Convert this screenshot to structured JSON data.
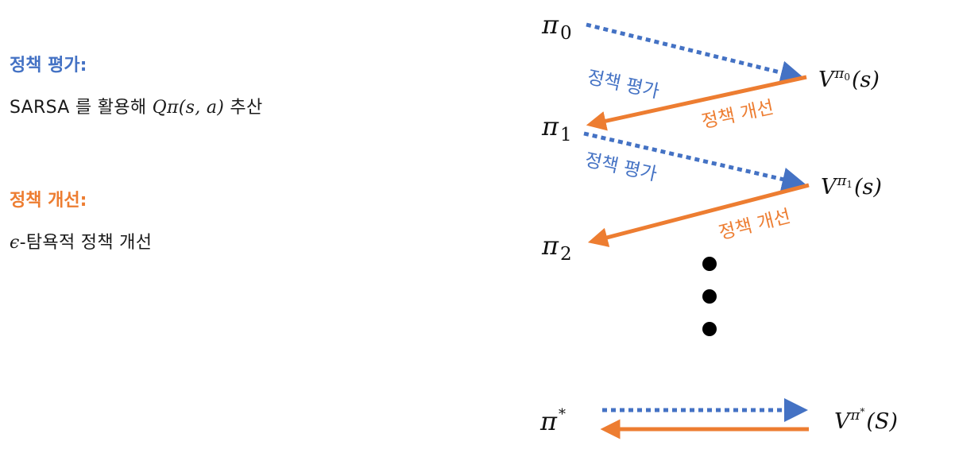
{
  "colors": {
    "blue": "#4472c4",
    "orange": "#ed7d31",
    "text": "#111111"
  },
  "left": {
    "eval_title": "정책 평가:",
    "eval_text_prefix": "SARSA 를 활용해 ",
    "eval_text_math": "Qπ(s, a)",
    "eval_text_suffix": " 추산",
    "improve_title": "정책 개선:",
    "improve_text_math": "ϵ",
    "improve_text_suffix": "-탐욕적 정책 개선"
  },
  "diagram": {
    "pi0_base": "π",
    "pi0_sub": "0",
    "pi1_base": "π",
    "pi1_sub": "1",
    "pi2_base": "π",
    "pi2_sub": "2",
    "pistar_base": "π",
    "pistar_sup": "*",
    "v0_base": "V",
    "v0_sup_base": "π",
    "v0_sup_sub": "0",
    "v0_arg": "(s)",
    "v1_base": "V",
    "v1_sup_base": "π",
    "v1_sup_sub": "1",
    "v1_arg": "(s)",
    "vstar_base": "V",
    "vstar_sup_base": "π",
    "vstar_sup_star": "*",
    "vstar_arg": "(S)",
    "eval_label_1": "정책 평가",
    "improve_label_1": "정책 개선",
    "eval_label_2": "정책 평가",
    "improve_label_2": "정책 개선"
  }
}
